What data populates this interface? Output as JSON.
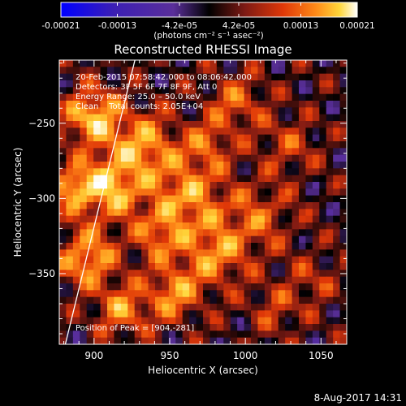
{
  "chart_data": {
    "type": "heatmap",
    "title": "Reconstructed RHESSI Image",
    "xlabel": "Heliocentric X (arcsec)",
    "ylabel": "Heliocentric Y (arcsec)",
    "xlim": [
      877,
      1067
    ],
    "ylim": [
      -397,
      -208
    ],
    "x_ticks": [
      900,
      950,
      1000,
      1050
    ],
    "y_ticks": [
      -250,
      -300,
      -350
    ],
    "x_tick_labels": [
      "900",
      "950",
      "1000",
      "1050"
    ],
    "y_tick_labels": [
      "−250",
      "−300",
      "−350"
    ],
    "colorbar": {
      "min": -0.00021,
      "max": 0.00021,
      "tick_values": [
        -0.00021,
        -0.00013,
        -4.2e-05,
        4.2e-05,
        0.00013,
        0.00021
      ],
      "tick_labels": [
        "-0.00021",
        "-0.00013",
        "-4.2e-05",
        "4.2e-05",
        "0.00013",
        "0.00021"
      ],
      "unit_label": "(photons cm⁻² s⁻¹ asec⁻²)"
    },
    "annotations": [
      "20-Feb-2015 07:58:42.000 to 08:06:42.000",
      "Detectors: 3F 5F 6F 7F 8F 9F, Att 0",
      "Energy Range: 25.0 – 50.0 keV",
      "Clean    Total counts: 2.05E+04"
    ],
    "peak_label": "Position of Peak = [904,-281]",
    "limb_line": {
      "x": [
        881,
        927
      ],
      "y": [
        -397,
        -208
      ]
    },
    "grid": false,
    "legend": "none"
  },
  "footer": {
    "timestamp": "8-Aug-2017 14:31"
  },
  "colors": {
    "background": "#000000",
    "text": "#ffffff",
    "colormap": [
      "#0000ff",
      "#3c1fb4",
      "#5a2f9a",
      "#000000",
      "#7d1a14",
      "#e03808",
      "#ff8a18",
      "#ffd63a",
      "#ffffff"
    ]
  }
}
